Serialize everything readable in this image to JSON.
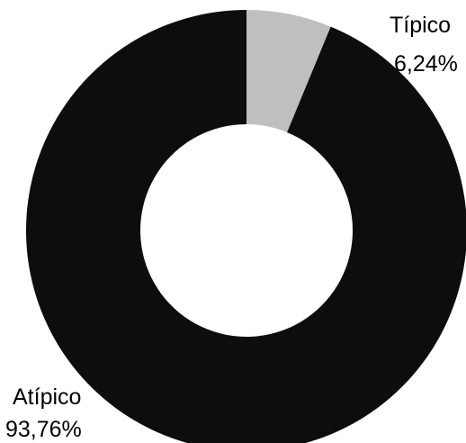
{
  "chart_data": {
    "type": "pie",
    "variant": "donut",
    "title": "",
    "legend": "none",
    "slices": [
      {
        "label": "Típico",
        "value": 6.24,
        "value_label": "6,24%",
        "color": "#bfbfbf"
      },
      {
        "label": "Atípico",
        "value": 93.76,
        "value_label": "93,76%",
        "color": "#0d0d0d"
      }
    ],
    "start_angle_deg": 0,
    "direction": "clockwise"
  }
}
